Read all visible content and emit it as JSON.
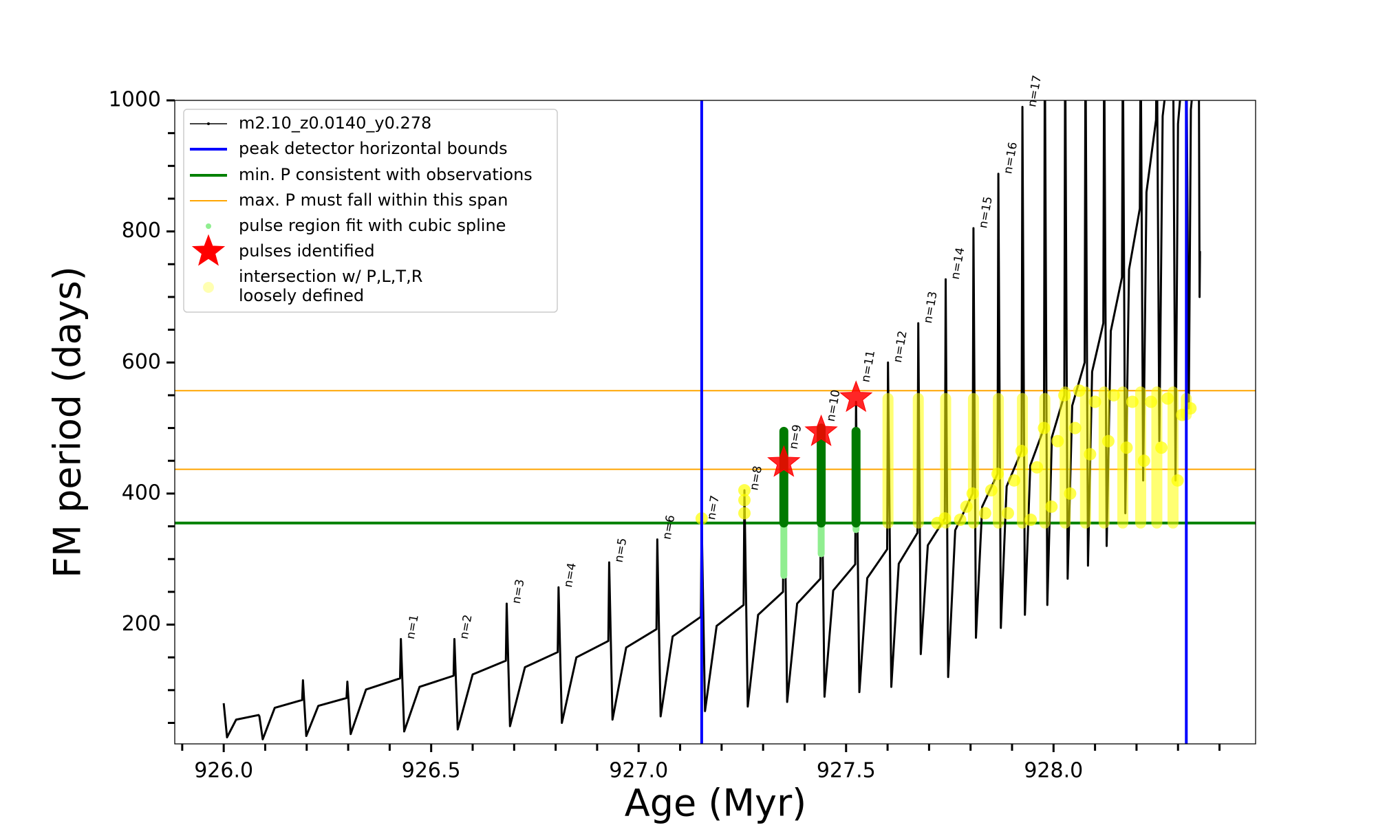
{
  "chart_data": {
    "type": "line",
    "xlabel": "Age (Myr)",
    "ylabel": "FM period (days)",
    "xlim": [
      925.882,
      928.487
    ],
    "ylim": [
      18,
      1000
    ],
    "xticks": [
      {
        "value": 926,
        "label": "926.0"
      },
      {
        "value": 926.5,
        "label": "926.5"
      },
      {
        "value": 927,
        "label": "927.0"
      },
      {
        "value": 927.5,
        "label": "927.5"
      },
      {
        "value": 928,
        "label": "928.0"
      }
    ],
    "xminorticks": [
      925.9,
      926.1,
      926.2,
      926.3,
      926.4,
      926.6,
      926.7,
      926.8,
      926.9,
      927.1,
      927.2,
      927.3,
      927.4,
      927.6,
      927.7,
      927.8,
      927.9,
      928.1,
      928.2,
      928.3,
      928.4
    ],
    "yticks": [
      200,
      400,
      600,
      800,
      1000
    ],
    "yminorticks": [
      50,
      100,
      150,
      250,
      300,
      350,
      450,
      500,
      550,
      650,
      700,
      750,
      850,
      900,
      950
    ],
    "legend": "upper left",
    "series": [
      {
        "name": "m2.10_z0.0140_y0.278",
        "color": "#000000",
        "x": [
          926.0,
          926.008,
          926.03,
          926.084,
          926.086,
          926.094,
          926.123,
          926.189,
          926.191,
          926.199,
          926.228,
          926.296,
          926.298,
          926.306,
          926.343,
          926.425,
          926.427,
          926.435,
          926.472,
          926.554,
          926.556,
          926.564,
          926.6,
          926.68,
          926.682,
          926.69,
          926.726,
          926.805,
          926.807,
          926.815,
          926.85,
          926.927,
          926.929,
          926.937,
          926.97,
          927.043,
          927.045,
          927.053,
          927.082,
          927.15,
          927.152,
          927.16,
          927.188,
          927.253,
          927.255,
          927.263,
          927.288,
          927.348,
          927.35,
          927.358,
          927.382,
          927.438,
          927.44,
          927.448,
          927.469,
          927.522,
          927.524,
          927.532,
          927.551,
          927.599,
          927.601,
          927.609,
          927.627,
          927.672,
          927.674,
          927.68,
          927.697,
          927.738,
          927.74,
          927.746,
          927.763,
          927.805,
          927.807,
          927.813,
          927.828,
          927.865,
          927.867,
          927.873,
          927.887,
          927.923,
          927.925,
          927.931,
          927.944,
          927.977,
          927.979,
          927.985,
          927.996,
          928.026,
          928.028,
          928.034,
          928.045,
          928.075,
          928.077,
          928.083,
          928.093,
          928.12,
          928.122,
          928.128,
          928.138,
          928.165,
          928.167,
          928.173,
          928.182,
          928.208,
          928.21,
          928.216,
          928.224,
          928.247,
          928.249,
          928.255,
          928.263,
          928.286,
          928.288,
          928.294,
          928.3,
          928.318,
          928.32,
          928.326,
          928.331,
          928.348,
          928.35,
          928.352,
          928.353
        ],
        "values": [
          80,
          28,
          55,
          62,
          60,
          25,
          73,
          85,
          115,
          30,
          76,
          88,
          113,
          33,
          101,
          118,
          178,
          37,
          105,
          122,
          178,
          40,
          124,
          145,
          232,
          45,
          135,
          158,
          257,
          50,
          150,
          175,
          295,
          55,
          165,
          193,
          330,
          60,
          182,
          212,
          360,
          68,
          198,
          230,
          405,
          75,
          215,
          250,
          480,
          82,
          232,
          270,
          500,
          90,
          252,
          292,
          540,
          97,
          271,
          315,
          600,
          105,
          293,
          340,
          660,
          155,
          321,
          362,
          727,
          120,
          344,
          400,
          805,
          180,
          380,
          430,
          888,
          195,
          411,
          465,
          990,
          215,
          443,
          500,
          1100,
          230,
          486,
          550,
          1100,
          270,
          534,
          600,
          1100,
          290,
          586,
          660,
          1100,
          320,
          648,
          730,
          1100,
          370,
          742,
          835,
          1100,
          420,
          860,
          970,
          1100,
          480,
          976,
          1100,
          1100,
          420,
          964,
          1100,
          1100,
          530,
          986,
          1100,
          1100,
          700,
          770
        ]
      }
    ],
    "vlines": {
      "name": "peak detector horizontal bounds",
      "color": "#0000ff",
      "x": [
        927.152,
        928.32
      ]
    },
    "min_line": {
      "name": "min. P consistent with observations",
      "color": "#008000",
      "values": [
        355
      ]
    },
    "span_lines": {
      "name": "max. P must fall within this span",
      "color": "#ffa500",
      "values": [
        437,
        557
      ]
    },
    "pulse_fit": {
      "name": "pulse region fit with cubic spline",
      "color": "#90ee90",
      "x": [
        927.35,
        927.44,
        927.524
      ],
      "low": [
        275,
        308,
        345
      ],
      "high": [
        355,
        355,
        355
      ]
    },
    "pulse_columns": {
      "color": "#007a00",
      "x": [
        927.35,
        927.44,
        927.524
      ],
      "low": [
        355,
        355,
        355
      ],
      "high": [
        495,
        500,
        495
      ]
    },
    "pulses": {
      "name": "pulses identified",
      "color": "#ff0000",
      "x": [
        927.35,
        927.44,
        927.524
      ],
      "values": [
        447,
        494,
        546
      ]
    },
    "intersections": {
      "name": [
        "intersection w/ P,L,T,R",
        "loosely defined"
      ],
      "color": "#ffff00",
      "x": [
        927.152,
        927.255,
        927.255,
        927.255,
        927.72,
        927.738,
        927.775,
        927.79,
        927.805,
        927.835,
        927.85,
        927.865,
        927.89,
        927.905,
        927.923,
        927.945,
        927.96,
        927.977,
        927.995,
        928.01,
        928.026,
        928.04,
        928.052,
        928.062,
        928.088,
        928.1,
        928.132,
        928.145,
        928.176,
        928.19,
        928.218,
        928.235,
        928.26,
        928.275,
        928.299,
        928.31,
        928.33
      ],
      "values": [
        362,
        370,
        390,
        405,
        355,
        362,
        360,
        380,
        400,
        370,
        405,
        430,
        370,
        420,
        465,
        360,
        440,
        500,
        380,
        480,
        550,
        400,
        500,
        557,
        460,
        540,
        480,
        550,
        470,
        540,
        450,
        540,
        470,
        545,
        420,
        520,
        530
      ],
      "columns": {
        "x": [
          927.601,
          927.674,
          927.74,
          927.807,
          927.867,
          927.925,
          927.979,
          928.028,
          928.077,
          928.122,
          928.167,
          928.21,
          928.249,
          928.288,
          928.32
        ],
        "low": [
          355,
          355,
          355,
          355,
          355,
          355,
          355,
          355,
          355,
          355,
          355,
          355,
          355,
          355,
          520
        ],
        "high": [
          545,
          545,
          545,
          545,
          545,
          545,
          545,
          555,
          555,
          555,
          555,
          555,
          555,
          555,
          545
        ]
      }
    },
    "annotations": [
      {
        "text": "n=1",
        "x": 926.427,
        "y": 178
      },
      {
        "text": "n=2",
        "x": 926.556,
        "y": 178
      },
      {
        "text": "n=3",
        "x": 926.682,
        "y": 232
      },
      {
        "text": "n=4",
        "x": 926.807,
        "y": 257
      },
      {
        "text": "n=5",
        "x": 926.929,
        "y": 295
      },
      {
        "text": "n=6",
        "x": 927.045,
        "y": 330
      },
      {
        "text": "n=7",
        "x": 927.152,
        "y": 360
      },
      {
        "text": "n=8",
        "x": 927.255,
        "y": 405
      },
      {
        "text": "n=9",
        "x": 927.35,
        "y": 468
      },
      {
        "text": "n=10",
        "x": 927.44,
        "y": 510
      },
      {
        "text": "n=11",
        "x": 927.524,
        "y": 570
      },
      {
        "text": "n=12",
        "x": 927.601,
        "y": 600
      },
      {
        "text": "n=13",
        "x": 927.674,
        "y": 660
      },
      {
        "text": "n=14",
        "x": 927.74,
        "y": 727
      },
      {
        "text": "n=15",
        "x": 927.807,
        "y": 805
      },
      {
        "text": "n=16",
        "x": 927.867,
        "y": 888
      },
      {
        "text": "n=17",
        "x": 927.925,
        "y": 990
      }
    ]
  }
}
